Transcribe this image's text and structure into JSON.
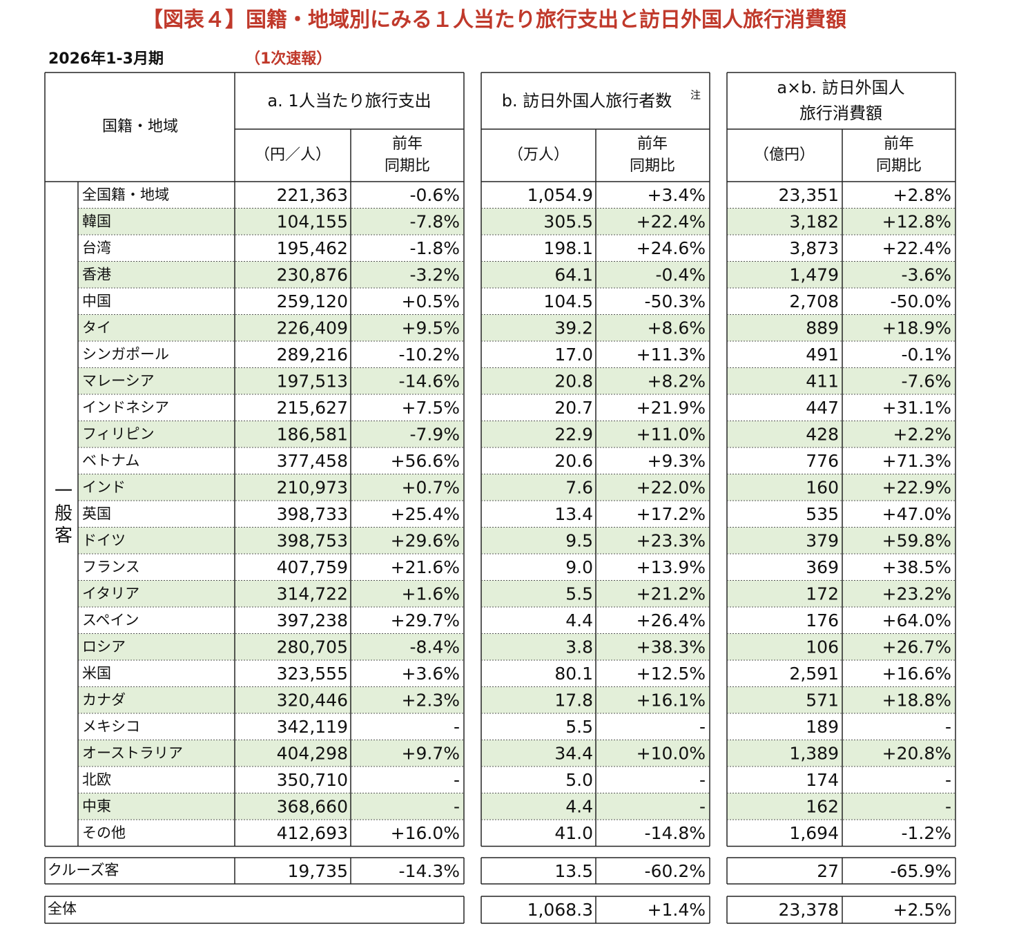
{
  "title": "【図表４】国籍・地域別にみる１人当たり旅行支出と訪日外国人旅行消費額",
  "period": "2026年1-3月期",
  "status": "（1次速報）",
  "headers": {
    "region": "国籍・地域",
    "group": "一般客",
    "a": {
      "title": "a. 1人当たり旅行支出",
      "unit": "（円／人）",
      "yoy": [
        "前年",
        "同期比"
      ]
    },
    "b": {
      "title": "b. 訪日外国人旅行者数",
      "note": "注",
      "unit": "（万人）",
      "yoy": [
        "前年",
        "同期比"
      ]
    },
    "ab": {
      "title": [
        "a×b. 訪日外国人",
        "旅行消費額"
      ],
      "unit": "（億円）",
      "yoy": [
        "前年",
        "同期比"
      ]
    }
  },
  "rows": [
    [
      "全国籍・地域",
      "221,363",
      "-0.6%",
      "1,054.9",
      "+3.4%",
      "23,351",
      "+2.8%"
    ],
    [
      "韓国",
      "104,155",
      "-7.8%",
      "305.5",
      "+22.4%",
      "3,182",
      "+12.8%"
    ],
    [
      "台湾",
      "195,462",
      "-1.8%",
      "198.1",
      "+24.6%",
      "3,873",
      "+22.4%"
    ],
    [
      "香港",
      "230,876",
      "-3.2%",
      "64.1",
      "-0.4%",
      "1,479",
      "-3.6%"
    ],
    [
      "中国",
      "259,120",
      "+0.5%",
      "104.5",
      "-50.3%",
      "2,708",
      "-50.0%"
    ],
    [
      "タイ",
      "226,409",
      "+9.5%",
      "39.2",
      "+8.6%",
      "889",
      "+18.9%"
    ],
    [
      "シンガポール",
      "289,216",
      "-10.2%",
      "17.0",
      "+11.3%",
      "491",
      "-0.1%"
    ],
    [
      "マレーシア",
      "197,513",
      "-14.6%",
      "20.8",
      "+8.2%",
      "411",
      "-7.6%"
    ],
    [
      "インドネシア",
      "215,627",
      "+7.5%",
      "20.7",
      "+21.9%",
      "447",
      "+31.1%"
    ],
    [
      "フィリピン",
      "186,581",
      "-7.9%",
      "22.9",
      "+11.0%",
      "428",
      "+2.2%"
    ],
    [
      "ベトナム",
      "377,458",
      "+56.6%",
      "20.6",
      "+9.3%",
      "776",
      "+71.3%"
    ],
    [
      "インド",
      "210,973",
      "+0.7%",
      "7.6",
      "+22.0%",
      "160",
      "+22.9%"
    ],
    [
      "英国",
      "398,733",
      "+25.4%",
      "13.4",
      "+17.2%",
      "535",
      "+47.0%"
    ],
    [
      "ドイツ",
      "398,753",
      "+29.6%",
      "9.5",
      "+23.3%",
      "379",
      "+59.8%"
    ],
    [
      "フランス",
      "407,759",
      "+21.6%",
      "9.0",
      "+13.9%",
      "369",
      "+38.5%"
    ],
    [
      "イタリア",
      "314,722",
      "+1.6%",
      "5.5",
      "+21.2%",
      "172",
      "+23.2%"
    ],
    [
      "スペイン",
      "397,238",
      "+29.7%",
      "4.4",
      "+26.4%",
      "176",
      "+64.0%"
    ],
    [
      "ロシア",
      "280,705",
      "-8.4%",
      "3.8",
      "+38.3%",
      "106",
      "+26.7%"
    ],
    [
      "米国",
      "323,555",
      "+3.6%",
      "80.1",
      "+12.5%",
      "2,591",
      "+16.6%"
    ],
    [
      "カナダ",
      "320,446",
      "+2.3%",
      "17.8",
      "+16.1%",
      "571",
      "+18.8%"
    ],
    [
      "メキシコ",
      "342,119",
      "-",
      "5.5",
      "-",
      "189",
      "-"
    ],
    [
      "オーストラリア",
      "404,298",
      "+9.7%",
      "34.4",
      "+10.0%",
      "1,389",
      "+20.8%"
    ],
    [
      "北欧",
      "350,710",
      "-",
      "5.0",
      "-",
      "174",
      "-"
    ],
    [
      "中東",
      "368,660",
      "-",
      "4.4",
      "-",
      "162",
      "-"
    ],
    [
      "その他",
      "412,693",
      "+16.0%",
      "41.0",
      "-14.8%",
      "1,694",
      "-1.2%"
    ]
  ],
  "cruise": [
    "クルーズ客",
    "19,735",
    "-14.3%",
    "13.5",
    "-60.2%",
    "27",
    "-65.9%"
  ],
  "total": {
    "label": "全体",
    "b": "1,068.3",
    "b_yoy": "+1.4%",
    "ab": "23,378",
    "ab_yoy": "+2.5%"
  }
}
